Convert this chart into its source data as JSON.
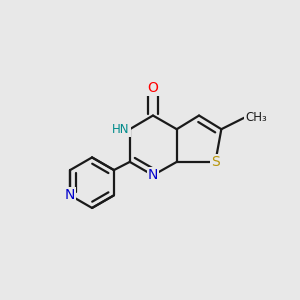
{
  "background_color": "#e8e8e8",
  "bond_color": "#1a1a1a",
  "bond_width": 1.6,
  "figsize": [
    3.0,
    3.0
  ],
  "dpi": 100,
  "font_size": 10,
  "font_size_small": 8.5,
  "colors": {
    "O": "#ff0000",
    "N": "#0000cc",
    "NH": "#008b8b",
    "S": "#b8960c",
    "C": "#1a1a1a",
    "CH3": "#1a1a1a"
  }
}
